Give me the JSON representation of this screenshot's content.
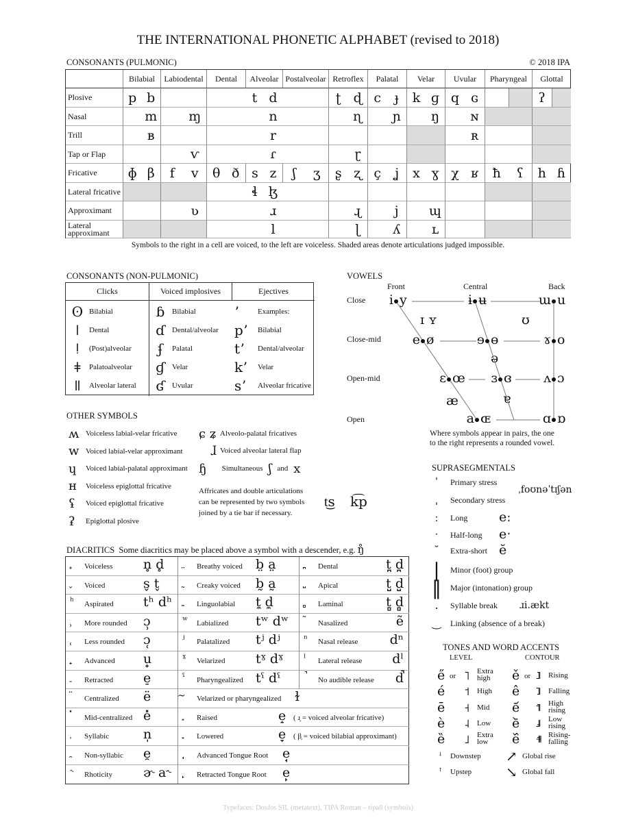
{
  "title": "THE INTERNATIONAL PHONETIC ALPHABET (revised to 2018)",
  "pulmonic": {
    "heading": "CONSONANTS (PULMONIC)",
    "copyright": "© 2018 IPA",
    "places": [
      "Bilabial",
      "Labiodental",
      "Dental",
      "Alveolar",
      "Postalveolar",
      "Retroflex",
      "Palatal",
      "Velar",
      "Uvular",
      "Pharyngeal",
      "Glottal"
    ],
    "rows": [
      {
        "label": "Plosive",
        "merged": true,
        "cells": [
          "p",
          "b",
          "",
          "",
          "",
          "",
          "t",
          "d",
          "",
          "",
          "ʈ",
          "ɖ",
          "c",
          "ɟ",
          "k",
          "ɡ",
          "q",
          "ɢ",
          "",
          "",
          "ʔ",
          ""
        ],
        "shaded": [
          19,
          21
        ]
      },
      {
        "label": "Nasal",
        "merged": true,
        "cells": [
          "",
          "m",
          "",
          "ɱ",
          "",
          "",
          "",
          "n",
          "",
          "",
          "",
          "ɳ",
          "",
          "ɲ",
          "",
          "ŋ",
          "",
          "ɴ",
          "",
          "",
          "",
          ""
        ],
        "shaded": [
          18,
          19,
          20,
          21
        ]
      },
      {
        "label": "Trill",
        "merged": true,
        "cells": [
          "",
          "ʙ",
          "",
          "",
          "",
          "",
          "",
          "r",
          "",
          "",
          "",
          "",
          "",
          "",
          "",
          "",
          "",
          "ʀ",
          "",
          "",
          "",
          ""
        ],
        "shaded": [
          14,
          15,
          20,
          21
        ]
      },
      {
        "label": "Tap or Flap",
        "merged": true,
        "cells": [
          "",
          "",
          "",
          "ⱱ",
          "",
          "",
          "",
          "ɾ",
          "",
          "",
          "",
          "ɽ",
          "",
          "",
          "",
          "",
          "",
          "",
          "",
          "",
          "",
          ""
        ],
        "shaded": [
          14,
          15,
          20,
          21
        ]
      },
      {
        "label": "Fricative",
        "merged": false,
        "cells": [
          "ɸ",
          "β",
          "f",
          "v",
          "θ",
          "ð",
          "s",
          "z",
          "ʃ",
          "ʒ",
          "ʂ",
          "ʐ",
          "ç",
          "ʝ",
          "x",
          "ɣ",
          "χ",
          "ʁ",
          "ħ",
          "ʕ",
          "h",
          "ɦ"
        ],
        "shaded": []
      },
      {
        "label": "Lateral fricative",
        "merged": true,
        "cells": [
          "",
          "",
          "",
          "",
          "",
          "",
          "ɬ",
          "ɮ",
          "",
          "",
          "",
          "",
          "",
          "",
          "",
          "",
          "",
          "",
          "",
          "",
          "",
          ""
        ],
        "shaded": [
          0,
          1,
          2,
          3,
          18,
          19,
          20,
          21
        ]
      },
      {
        "label": "Approximant",
        "merged": true,
        "cells": [
          "",
          "",
          "",
          "ʋ",
          "",
          "",
          "",
          "ɹ",
          "",
          "",
          "",
          "ɻ",
          "",
          "j",
          "",
          "ɰ",
          "",
          "",
          "",
          "",
          "",
          ""
        ],
        "shaded": [
          20,
          21
        ]
      },
      {
        "label": "Lateral approximant",
        "merged": true,
        "cells": [
          "",
          "",
          "",
          "",
          "",
          "",
          "",
          "l",
          "",
          "",
          "",
          "ɭ",
          "",
          "ʎ",
          "",
          "ʟ",
          "",
          "",
          "",
          "",
          "",
          ""
        ],
        "shaded": [
          0,
          1,
          2,
          3,
          18,
          19,
          20,
          21
        ]
      }
    ],
    "note": "Symbols to the right in a cell are voiced, to the left are voiceless. Shaded areas denote articulations judged impossible.",
    "shade_color": "#dcdcdc"
  },
  "nonpulmonic": {
    "heading": "CONSONANTS (NON-PULMONIC)",
    "columns": [
      "Clicks",
      "Voiced implosives",
      "Ejectives"
    ],
    "clicks": [
      [
        "ʘ",
        "Bilabial"
      ],
      [
        "ǀ",
        "Dental"
      ],
      [
        "ǃ",
        "(Post)alveolar"
      ],
      [
        "ǂ",
        "Palatoalveolar"
      ],
      [
        "ǁ",
        "Alveolar lateral"
      ]
    ],
    "implosives": [
      [
        "ɓ",
        "Bilabial"
      ],
      [
        "ɗ",
        "Dental/alveolar"
      ],
      [
        "ʄ",
        "Palatal"
      ],
      [
        "ɠ",
        "Velar"
      ],
      [
        "ʛ",
        "Uvular"
      ]
    ],
    "ejectives": [
      [
        "ʼ",
        "Examples:"
      ],
      [
        "pʼ",
        "Bilabial"
      ],
      [
        "tʼ",
        "Dental/alveolar"
      ],
      [
        "kʼ",
        "Velar"
      ],
      [
        "sʼ",
        "Alveolar fricative"
      ]
    ]
  },
  "other": {
    "heading": "OTHER SYMBOLS",
    "left": [
      [
        "ʍ",
        "Voiceless labial-velar fricative"
      ],
      [
        "w",
        "Voiced labial-velar approximant"
      ],
      [
        "ɥ",
        "Voiced labial-palatal approximant"
      ],
      [
        "ʜ",
        "Voiceless epiglottal fricative"
      ],
      [
        "ʢ",
        "Voiced epiglottal fricative"
      ],
      [
        "ʡ",
        "Epiglottal plosive"
      ]
    ],
    "alveolopalatal": {
      "symbol": "ɕ ʑ",
      "label": "Alveolo-palatal fricatives"
    },
    "lateral_flap": {
      "symbol": "ɺ",
      "label": "Voiced alveolar lateral flap"
    },
    "simultaneous": {
      "symbol": "ɧ",
      "label": "Simultaneous",
      "a": "ʃ",
      "and": "and",
      "b": "x"
    },
    "affricates_note": [
      "Affricates and double articulations",
      "can be represented by two symbols",
      "joined by a tie bar if necessary."
    ],
    "tie_examples": [
      "t͜s",
      "k͡p"
    ]
  },
  "vowels": {
    "heading": "VOWELS",
    "columns": [
      "Front",
      "Central",
      "Back"
    ],
    "heights": [
      "Close",
      "Close-mid",
      "Open-mid",
      "Open"
    ],
    "pairs": {
      "close": [
        [
          "i",
          "y"
        ],
        [
          "ɨ",
          "ʉ"
        ],
        [
          "ɯ",
          "u"
        ]
      ],
      "close_mid": [
        [
          "e",
          "ø"
        ],
        [
          "ɘ",
          "ɵ"
        ],
        [
          "ɤ",
          "o"
        ]
      ],
      "open_mid": [
        [
          "ɛ",
          "œ"
        ],
        [
          "ɜ",
          "ɞ"
        ],
        [
          "ʌ",
          "ɔ"
        ]
      ],
      "open": [
        [
          "a",
          "ɶ"
        ],
        [
          "ɑ",
          "ɒ"
        ]
      ]
    },
    "near_close": [
      "ɪ ʏ",
      "ʊ"
    ],
    "mid": "ə",
    "near_open": [
      "æ",
      "ɐ"
    ],
    "caption": [
      "Where symbols appear in pairs, the one",
      "to the right represents a rounded vowel."
    ]
  },
  "suprasegmentals": {
    "heading": "SUPRASEGMENTALS",
    "items": [
      {
        "mark": "ˈ",
        "label": "Primary stress",
        "example": ""
      },
      {
        "mark": "ˌ",
        "label": "Secondary stress",
        "example": ""
      },
      {
        "mark": "ː",
        "label": "Long",
        "example": "eː"
      },
      {
        "mark": "ˑ",
        "label": "Half-long",
        "example": "eˑ"
      },
      {
        "mark": "˘",
        "label": "Extra-short",
        "example": "ĕ"
      },
      {
        "mark": "|",
        "label": "Minor (foot) group",
        "example": ""
      },
      {
        "mark": "‖",
        "label": "Major (intonation) group",
        "example": ""
      },
      {
        "mark": ".",
        "label": "Syllable break",
        "example": "ɹi.ækt"
      },
      {
        "mark": "‿",
        "label": "Linking (absence of a break)",
        "example": ""
      }
    ],
    "stress_example": "ˌfoʊnəˈtɪʃən"
  },
  "tones": {
    "heading": "TONES AND WORD ACCENTS",
    "level_heading": "LEVEL",
    "contour_heading": "CONTOUR",
    "or": "or",
    "level": [
      [
        "e̋",
        "˥",
        "Extra high"
      ],
      [
        "é",
        "˦",
        "High"
      ],
      [
        "ē",
        "˧",
        "Mid"
      ],
      [
        "è",
        "˨",
        "Low"
      ],
      [
        "ȅ",
        "˩",
        "Extra low"
      ]
    ],
    "contour": [
      [
        "ě",
        "˩˥",
        "Rising"
      ],
      [
        "ê",
        "˥˩",
        "Falling"
      ],
      [
        "e᷄",
        "˦˥",
        "High rising"
      ],
      [
        "e᷅",
        "˩˨",
        "Low rising"
      ],
      [
        "e᷈",
        "˧˦˧",
        "Rising-falling"
      ]
    ],
    "steps": [
      [
        "ꜜ",
        "Downstep"
      ],
      [
        "ꜛ",
        "Upstep"
      ]
    ],
    "global": [
      [
        "↗",
        "Global rise"
      ],
      [
        "↘",
        "Global fall"
      ]
    ]
  },
  "diacritics": {
    "heading": "DIACRITICS",
    "subheading": "Some diacritics may be placed above a symbol with a descender, e.g.",
    "heading_example": "ŋ̊",
    "rows3": [
      [
        [
          " ̥",
          "Voiceless",
          "n̥ d̥"
        ],
        [
          " ̤",
          "Breathy voiced",
          "b̤  a̤"
        ],
        [
          " ̪",
          "Dental",
          "t̪ d̪"
        ]
      ],
      [
        [
          " ̬",
          "Voiced",
          "s̬ t̬"
        ],
        [
          " ̰",
          "Creaky voiced",
          "b̰  a̰"
        ],
        [
          " ̺",
          "Apical",
          "t̺ d̺"
        ]
      ],
      [
        [
          "ʰ",
          "Aspirated",
          "tʰ dʰ"
        ],
        [
          " ̼",
          "Linguolabial",
          "t̼  d̼"
        ],
        [
          " ̻",
          "Laminal",
          "t̻ d̻"
        ]
      ],
      [
        [
          " ̹",
          "More rounded",
          "ɔ̹"
        ],
        [
          "ʷ",
          "Labialized",
          "tʷ dʷ"
        ],
        [
          " ̃",
          "Nasalized",
          "ẽ"
        ]
      ],
      [
        [
          " ̜",
          "Less rounded",
          "ɔ̜"
        ],
        [
          "ʲ",
          "Palatalized",
          "tʲ  dʲ"
        ],
        [
          "ⁿ",
          "Nasal release",
          "dⁿ"
        ]
      ],
      [
        [
          " ̟",
          "Advanced",
          "u̟"
        ],
        [
          "ˠ",
          "Velarized",
          "tˠ  dˠ"
        ],
        [
          "ˡ",
          "Lateral release",
          "dˡ"
        ]
      ],
      [
        [
          " ̠",
          "Retracted",
          "e̠"
        ],
        [
          "ˤ",
          "Pharyngealized",
          "tˤ  dˤ"
        ],
        [
          " ̚",
          "No audible release",
          "d̚"
        ]
      ]
    ],
    "rows2": [
      [
        [
          " ̈",
          "Centralized",
          "ë"
        ],
        [
          " ̴",
          "Velarized or pharyngealized",
          "ɫ",
          ""
        ]
      ],
      [
        [
          " ̽",
          "Mid-centralized",
          "e̽"
        ],
        [
          " ̝",
          "Raised",
          "e̝",
          "( ɹ̝ = voiced alveolar fricative)"
        ]
      ],
      [
        [
          " ̩",
          "Syllabic",
          "n̩"
        ],
        [
          " ̞",
          "Lowered",
          "e̞",
          "( β̞ = voiced bilabial approximant)"
        ]
      ],
      [
        [
          " ̯",
          "Non-syllabic",
          "e̯"
        ],
        [
          " ̘",
          "Advanced Tongue Root",
          "e̘",
          ""
        ]
      ],
      [
        [
          "˞",
          "Rhoticity",
          "ɚ a˞"
        ],
        [
          " ̙",
          "Retracted Tongue Root",
          "e̙",
          ""
        ]
      ]
    ]
  },
  "footer": "Typefaces: Doulos SIL (metatext), TIPA Roman – tipa8 (symbols)"
}
